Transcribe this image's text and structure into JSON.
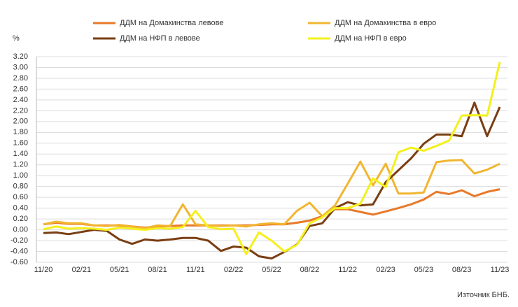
{
  "chart_data": {
    "type": "line",
    "y_unit_label": "%",
    "source": "Източник БНБ.",
    "categories": [
      "11/20",
      null,
      null,
      "02/21",
      null,
      null,
      "05/21",
      null,
      null,
      "08/21",
      null,
      null,
      "11/21",
      null,
      null,
      "02/22",
      null,
      null,
      "05/22",
      null,
      null,
      "08/22",
      null,
      null,
      "11/22",
      null,
      null,
      "02/23",
      null,
      null,
      "05/23",
      null,
      null,
      "08/23",
      null,
      null,
      "11/23"
    ],
    "series": [
      {
        "name": "ДДМ на Домакинства левове",
        "color": "#e8792a",
        "values": [
          0.1,
          0.13,
          0.11,
          0.11,
          0.08,
          0.08,
          0.08,
          0.06,
          0.04,
          0.06,
          0.07,
          0.08,
          0.08,
          0.08,
          0.08,
          0.08,
          0.08,
          0.09,
          0.1,
          0.1,
          0.13,
          0.17,
          0.25,
          0.38,
          0.38,
          0.33,
          0.28,
          0.34,
          0.4,
          0.47,
          0.56,
          0.7,
          0.66,
          0.73,
          0.62,
          0.7,
          0.75
        ]
      },
      {
        "name": "ДДМ на Домакинства в евро",
        "color": "#f2b531",
        "values": [
          0.1,
          0.15,
          0.12,
          0.12,
          0.08,
          0.07,
          0.09,
          0.06,
          0.03,
          0.08,
          0.07,
          0.47,
          0.1,
          0.08,
          0.07,
          0.08,
          0.06,
          0.1,
          0.12,
          0.1,
          0.35,
          0.5,
          0.25,
          0.45,
          0.85,
          1.26,
          0.82,
          1.22,
          0.67,
          0.67,
          0.69,
          1.25,
          1.28,
          1.29,
          1.04,
          1.11,
          1.22
        ]
      },
      {
        "name": "ДДМ на НФП  в левове",
        "color": "#7a3e12",
        "values": [
          -0.06,
          -0.05,
          -0.08,
          -0.04,
          0.0,
          -0.02,
          -0.18,
          -0.26,
          -0.18,
          -0.2,
          -0.18,
          -0.15,
          -0.15,
          -0.2,
          -0.39,
          -0.31,
          -0.33,
          -0.49,
          -0.53,
          -0.41,
          -0.27,
          0.07,
          0.12,
          0.4,
          0.51,
          0.45,
          0.47,
          0.88,
          1.1,
          1.32,
          1.59,
          1.76,
          1.76,
          1.73,
          2.35,
          1.73,
          2.27
        ]
      },
      {
        "name": "ДДМ на НФП  в евро",
        "color": "#f4f01c",
        "values": [
          0.01,
          0.06,
          0.02,
          0.03,
          0.02,
          0.0,
          0.04,
          0.02,
          0.0,
          0.03,
          0.02,
          0.05,
          0.35,
          0.05,
          0.01,
          0.02,
          -0.45,
          -0.05,
          -0.2,
          -0.4,
          -0.28,
          0.12,
          0.23,
          0.4,
          0.4,
          0.48,
          0.95,
          0.79,
          1.43,
          1.52,
          1.46,
          1.55,
          1.65,
          2.11,
          2.12,
          2.11,
          3.1
        ]
      }
    ],
    "ylim": [
      -0.6,
      3.2
    ],
    "yticks": [
      {
        "value": -0.6,
        "label": "-0.60"
      },
      {
        "value": -0.4,
        "label": "-0.40"
      },
      {
        "value": -0.2,
        "label": "-0.20"
      },
      {
        "value": 0,
        "label": "0.00"
      },
      {
        "value": 0.2,
        "label": "0.20"
      },
      {
        "value": 0.4,
        "label": "0.40"
      },
      {
        "value": 0.6,
        "label": "0.60"
      },
      {
        "value": 0.8,
        "label": "0.80"
      },
      {
        "value": 1.0,
        "label": "1.00"
      },
      {
        "value": 1.2,
        "label": "1.20"
      },
      {
        "value": 1.4,
        "label": "1.40"
      },
      {
        "value": 1.6,
        "label": "1.60"
      },
      {
        "value": 1.8,
        "label": "1.80"
      },
      {
        "value": 2.0,
        "label": "2.00"
      },
      {
        "value": 2.2,
        "label": "2.20"
      },
      {
        "value": 2.4,
        "label": "2.40"
      },
      {
        "value": 2.6,
        "label": "2.60"
      },
      {
        "value": 2.8,
        "label": "2.80"
      },
      {
        "value": 3.0,
        "label": "3.00"
      },
      {
        "value": 3.2,
        "label": "3.20"
      }
    ],
    "grid": true
  }
}
